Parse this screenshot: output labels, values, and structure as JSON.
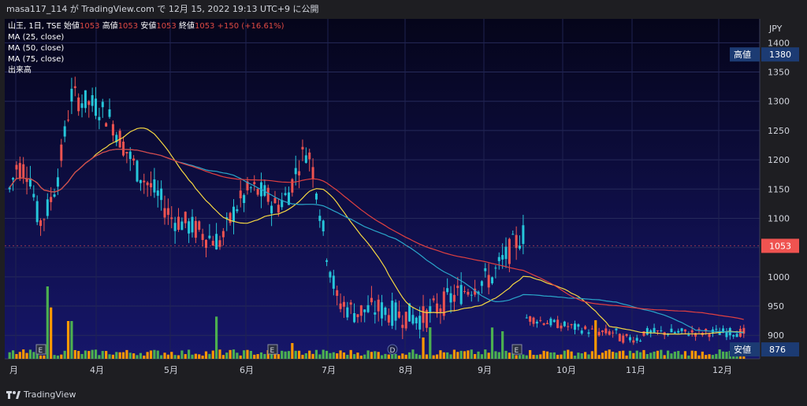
{
  "header": {
    "title": "masa117_114 が TradingView.com で 12月 15, 2022 19:13 UTC+9 に公開"
  },
  "legend": {
    "symbol": "山王, 1日, TSE",
    "open_label": "始値",
    "open": "1053",
    "high_label": "高値",
    "high": "1053",
    "low_label": "安値",
    "low": "1053",
    "close_label": "終値",
    "close": "1053",
    "change": "+150 (+16.61%)",
    "ma1": "MA (25, close)",
    "ma2": "MA (50, close)",
    "ma3": "MA (75, close)",
    "volume": "出来高"
  },
  "footer": {
    "brand": "TradingView"
  },
  "chart_data": {
    "type": "candlestick",
    "currency": "JPY",
    "ylim": [
      860,
      1430
    ],
    "y_ticks": [
      "1400",
      "1350",
      "1300",
      "1250",
      "1200",
      "1150",
      "1100",
      "1050",
      "1000",
      "950",
      "900"
    ],
    "x_ticks": [
      "月",
      "4月",
      "5月",
      "6月",
      "7月",
      "8月",
      "9月",
      "10月",
      "11月",
      "12月"
    ],
    "markers": {
      "high": {
        "label": "高値",
        "value": "1380"
      },
      "last": {
        "value": "1053"
      },
      "low": {
        "label": "安値",
        "value": "876"
      }
    },
    "events": [
      "E",
      "E",
      "D",
      "E"
    ],
    "colors": {
      "up": "#26c6da",
      "down": "#ef5350",
      "ma25": "#f5d742",
      "ma50": "#2aa6c9",
      "ma75": "#e04040",
      "volume_up": "#4caf50",
      "volume_down": "#ff9800",
      "background": "#0a0a2a",
      "badge": "#1c3b73"
    }
  }
}
